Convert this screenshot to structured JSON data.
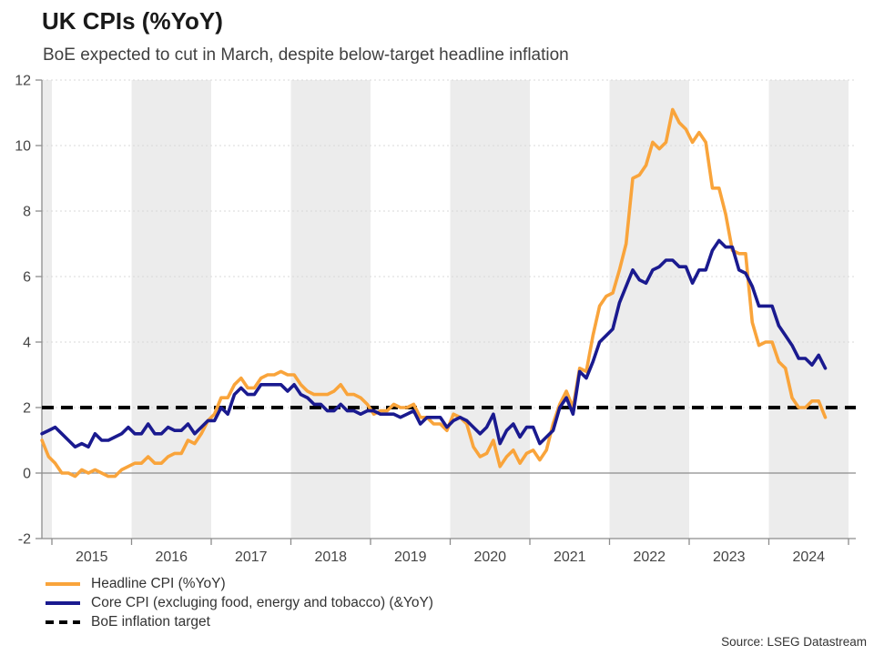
{
  "header": {
    "title": "UK CPIs (%YoY)",
    "subtitle": "BoE expected to cut in March, despite below-target headline inflation"
  },
  "source": "Source: LSEG Datastream",
  "legend": [
    {
      "label": "Headline CPI (%YoY)",
      "color": "#F9A43B",
      "style": "solid"
    },
    {
      "label": "Core CPI (excluging food, energy and tobacco) (&YoY)",
      "color": "#1A1A8F",
      "style": "solid"
    },
    {
      "label": "BoE inflation target",
      "color": "#000000",
      "style": "dashed"
    }
  ],
  "chart_data": {
    "type": "line",
    "title": "UK CPIs (%YoY)",
    "subtitle": "BoE expected to cut in March, despite below-target headline inflation",
    "frequency": "monthly",
    "x_start": "2014-11",
    "x_end": "2024-09",
    "xlabel": "",
    "ylabel": "",
    "ylim": [
      -2,
      12
    ],
    "yticks": [
      -2,
      0,
      2,
      4,
      6,
      8,
      10,
      12
    ],
    "x_year_boundaries": [
      2015,
      2016,
      2017,
      2018,
      2019,
      2020,
      2021,
      2022,
      2023,
      2024,
      2025
    ],
    "x_year_labels": [
      "2015",
      "2016",
      "2017",
      "2018",
      "2019",
      "2020",
      "2021",
      "2022",
      "2023",
      "2024"
    ],
    "grid": "dotted horizontal gridlines; alternating gray vertical year bands (even years shaded)",
    "legend_position": "bottom-left",
    "band_color": "#ECECEC",
    "grid_color": "#D9D9D9",
    "axis_color": "#8C8C8C",
    "tick_label_color": "#454545",
    "target_line": {
      "label": "BoE inflation target",
      "value": 2,
      "color": "#000000",
      "style": "dashed"
    },
    "series": [
      {
        "name": "Headline CPI (%YoY)",
        "color": "#F9A43B",
        "values": [
          1.0,
          0.5,
          0.3,
          0.0,
          0.0,
          -0.1,
          0.1,
          0.0,
          0.1,
          0.0,
          -0.1,
          -0.1,
          0.1,
          0.2,
          0.3,
          0.3,
          0.5,
          0.3,
          0.3,
          0.5,
          0.6,
          0.6,
          1.0,
          0.9,
          1.2,
          1.6,
          1.8,
          2.3,
          2.3,
          2.7,
          2.9,
          2.6,
          2.6,
          2.9,
          3.0,
          3.0,
          3.1,
          3.0,
          3.0,
          2.7,
          2.5,
          2.4,
          2.4,
          2.4,
          2.5,
          2.7,
          2.4,
          2.4,
          2.3,
          2.1,
          1.8,
          1.9,
          1.9,
          2.1,
          2.0,
          2.0,
          2.1,
          1.7,
          1.7,
          1.5,
          1.5,
          1.3,
          1.8,
          1.7,
          1.5,
          0.8,
          0.5,
          0.6,
          1.0,
          0.2,
          0.5,
          0.7,
          0.3,
          0.6,
          0.7,
          0.4,
          0.7,
          1.5,
          2.1,
          2.5,
          2.0,
          3.2,
          3.1,
          4.2,
          5.1,
          5.4,
          5.5,
          6.2,
          7.0,
          9.0,
          9.1,
          9.4,
          10.1,
          9.9,
          10.1,
          11.1,
          10.7,
          10.5,
          10.1,
          10.4,
          10.1,
          8.7,
          8.7,
          7.9,
          6.8,
          6.7,
          6.7,
          4.6,
          3.9,
          4.0,
          4.0,
          3.4,
          3.2,
          2.3,
          2.0,
          2.0,
          2.2,
          2.2,
          1.7
        ]
      },
      {
        "name": "Core CPI (excluging food, energy and tobacco) (&YoY)",
        "color": "#1A1A8F",
        "values": [
          1.2,
          1.3,
          1.4,
          1.2,
          1.0,
          0.8,
          0.9,
          0.8,
          1.2,
          1.0,
          1.0,
          1.1,
          1.2,
          1.4,
          1.2,
          1.2,
          1.5,
          1.2,
          1.2,
          1.4,
          1.3,
          1.3,
          1.5,
          1.2,
          1.4,
          1.6,
          1.6,
          2.0,
          1.8,
          2.4,
          2.6,
          2.4,
          2.4,
          2.7,
          2.7,
          2.7,
          2.7,
          2.5,
          2.7,
          2.4,
          2.3,
          2.1,
          2.1,
          1.9,
          1.9,
          2.1,
          1.9,
          1.9,
          1.8,
          1.9,
          1.9,
          1.8,
          1.8,
          1.8,
          1.7,
          1.8,
          1.9,
          1.5,
          1.7,
          1.7,
          1.7,
          1.4,
          1.6,
          1.7,
          1.6,
          1.4,
          1.2,
          1.4,
          1.8,
          0.9,
          1.3,
          1.5,
          1.1,
          1.4,
          1.4,
          0.9,
          1.1,
          1.3,
          2.0,
          2.3,
          1.8,
          3.1,
          2.9,
          3.4,
          4.0,
          4.2,
          4.4,
          5.2,
          5.7,
          6.2,
          5.9,
          5.8,
          6.2,
          6.3,
          6.5,
          6.5,
          6.3,
          6.3,
          5.8,
          6.2,
          6.2,
          6.8,
          7.1,
          6.9,
          6.9,
          6.2,
          6.1,
          5.7,
          5.1,
          5.1,
          5.1,
          4.5,
          4.2,
          3.9,
          3.5,
          3.5,
          3.3,
          3.6,
          3.2
        ]
      }
    ]
  }
}
